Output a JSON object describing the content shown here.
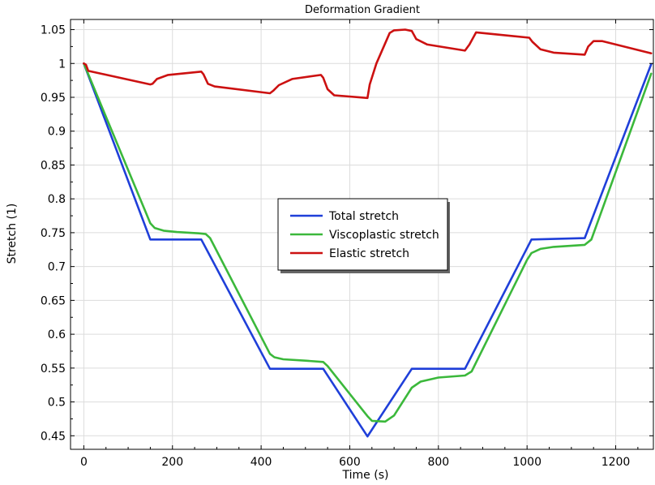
{
  "chart_data": {
    "type": "line",
    "title": "Deformation Gradient",
    "xlabel": "Time (s)",
    "ylabel": "Stretch (1)",
    "xlim": [
      -30,
      1285
    ],
    "ylim": [
      0.43,
      1.065
    ],
    "xticks": [
      0,
      200,
      400,
      600,
      800,
      1000,
      1200
    ],
    "xtick_labels": [
      "0",
      "200",
      "400",
      "600",
      "800",
      "1000",
      "1200"
    ],
    "yticks": [
      0.45,
      0.5,
      0.55,
      0.6,
      0.65,
      0.7,
      0.75,
      0.8,
      0.85,
      0.9,
      0.95,
      1.0,
      1.05
    ],
    "ytick_labels": [
      "0.45",
      "0.5",
      "0.55",
      "0.6",
      "0.65",
      "0.7",
      "0.75",
      "0.8",
      "0.85",
      "0.9",
      "0.95",
      "1",
      "1.05"
    ],
    "grid": true,
    "legend_position": "center",
    "series": [
      {
        "name": "Total stretch",
        "color": "#1f3fd9",
        "x": [
          0,
          150,
          265,
          420,
          540,
          640,
          740,
          860,
          1010,
          1130,
          1280
        ],
        "y": [
          1.0,
          0.74,
          0.74,
          0.549,
          0.549,
          0.449,
          0.549,
          0.549,
          0.74,
          0.742,
          0.999
        ]
      },
      {
        "name": "Viscoplastic stretch",
        "color": "#3bb83b",
        "x": [
          0,
          150,
          160,
          180,
          210,
          260,
          275,
          285,
          420,
          430,
          450,
          500,
          540,
          550,
          640,
          650,
          680,
          700,
          740,
          760,
          800,
          860,
          875,
          1000,
          1010,
          1030,
          1060,
          1130,
          1145,
          1280
        ],
        "y": [
          1.0,
          0.764,
          0.757,
          0.753,
          0.751,
          0.749,
          0.748,
          0.742,
          0.571,
          0.566,
          0.563,
          0.561,
          0.559,
          0.553,
          0.479,
          0.472,
          0.471,
          0.48,
          0.521,
          0.53,
          0.536,
          0.539,
          0.545,
          0.71,
          0.72,
          0.726,
          0.729,
          0.732,
          0.74,
          0.985
        ]
      },
      {
        "name": "Elastic stretch",
        "color": "#cc1111",
        "x": [
          0,
          5,
          10,
          150,
          155,
          165,
          190,
          265,
          270,
          280,
          295,
          420,
          428,
          440,
          470,
          535,
          540,
          550,
          565,
          640,
          645,
          660,
          690,
          700,
          725,
          740,
          750,
          775,
          860,
          870,
          885,
          1005,
          1012,
          1030,
          1060,
          1130,
          1138,
          1150,
          1170,
          1280
        ],
        "y": [
          1.0,
          0.998,
          0.989,
          0.969,
          0.97,
          0.977,
          0.983,
          0.988,
          0.984,
          0.97,
          0.966,
          0.956,
          0.96,
          0.968,
          0.977,
          0.983,
          0.979,
          0.962,
          0.953,
          0.949,
          0.969,
          1.0,
          1.045,
          1.049,
          1.05,
          1.048,
          1.036,
          1.028,
          1.019,
          1.028,
          1.046,
          1.038,
          1.032,
          1.021,
          1.016,
          1.013,
          1.025,
          1.033,
          1.033,
          1.015
        ]
      }
    ]
  }
}
